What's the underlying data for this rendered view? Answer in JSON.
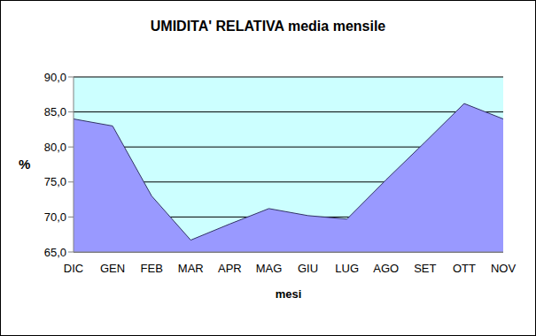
{
  "chart_data": {
    "type": "area",
    "title": "UMIDITA' RELATIVA media mensile",
    "x_label": "mesi",
    "y_label": "%",
    "categories": [
      "DIC",
      "GEN",
      "FEB",
      "MAR",
      "APR",
      "MAG",
      "GIU",
      "LUG",
      "AGO",
      "SET",
      "OTT",
      "NOV"
    ],
    "values": [
      84.0,
      83.0,
      73.0,
      66.7,
      69.0,
      71.2,
      70.2,
      69.7,
      75.3,
      80.7,
      86.2,
      84.0
    ],
    "color": "#9999ff",
    "ylim": [
      65,
      90
    ],
    "yticks": [
      {
        "value": 65,
        "label": "65,0"
      },
      {
        "value": 70,
        "label": "70,0"
      },
      {
        "value": 75,
        "label": "75,0"
      },
      {
        "value": 80,
        "label": "80,0"
      },
      {
        "value": 85,
        "label": "85,0"
      },
      {
        "value": 90,
        "label": "90,0"
      }
    ],
    "grid": true
  }
}
